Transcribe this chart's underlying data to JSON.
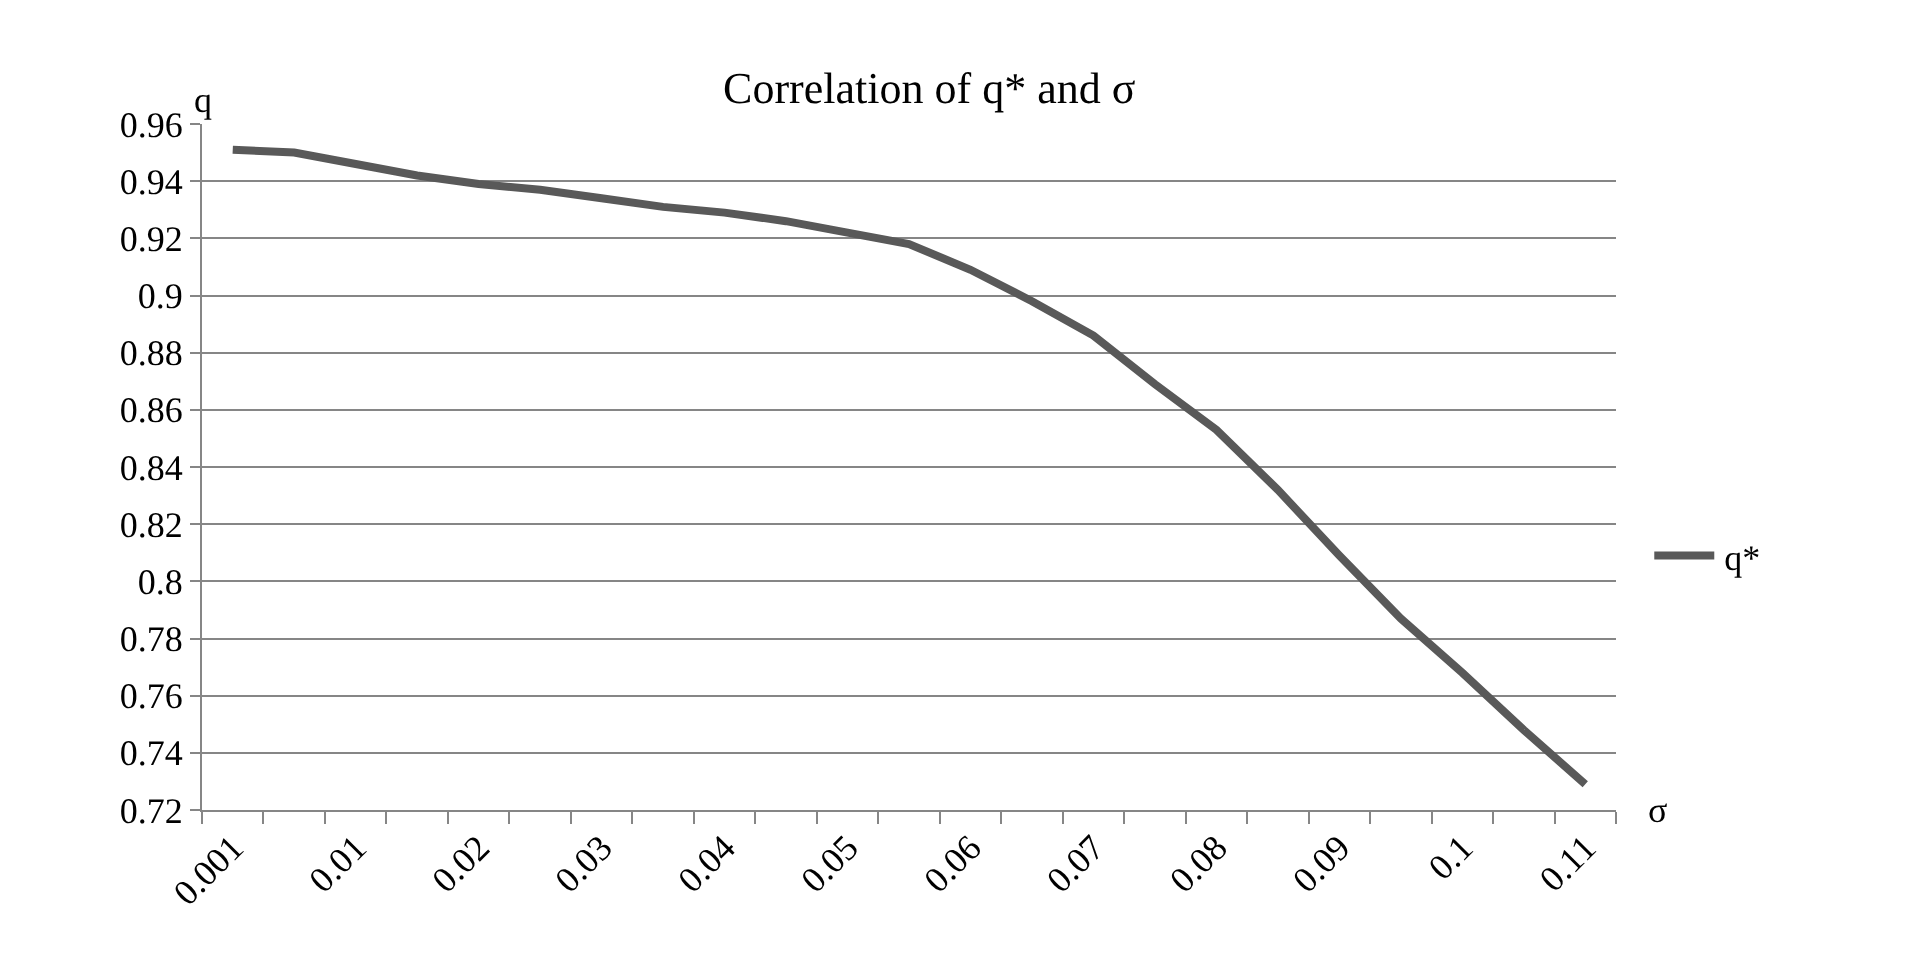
{
  "chart_data": {
    "type": "line",
    "title": "Correlation of q* and σ",
    "xlabel": "σ",
    "ylabel": "q",
    "categories": [
      "0.001",
      null,
      "0.01",
      null,
      "0.02",
      null,
      "0.03",
      null,
      "0.04",
      null,
      "0.05",
      null,
      "0.06",
      null,
      "0.07",
      null,
      "0.08",
      null,
      "0.09",
      null,
      "0.1",
      null,
      "0.11"
    ],
    "series": [
      {
        "name": "q*",
        "color": "#595959",
        "values": [
          0.951,
          0.95,
          0.946,
          0.942,
          0.939,
          0.937,
          0.934,
          0.931,
          0.929,
          0.926,
          0.922,
          0.918,
          0.909,
          0.898,
          0.886,
          0.869,
          0.853,
          0.832,
          0.809,
          0.787,
          0.768,
          0.748,
          0.729
        ]
      }
    ],
    "ylim": [
      0.72,
      0.96
    ],
    "yticks": [
      0.72,
      0.74,
      0.76,
      0.78,
      0.8,
      0.82,
      0.84,
      0.86,
      0.88,
      0.9,
      0.92,
      0.94,
      0.96
    ],
    "grid": "y",
    "legend": "right",
    "marker": "none",
    "line_style": "solid"
  }
}
